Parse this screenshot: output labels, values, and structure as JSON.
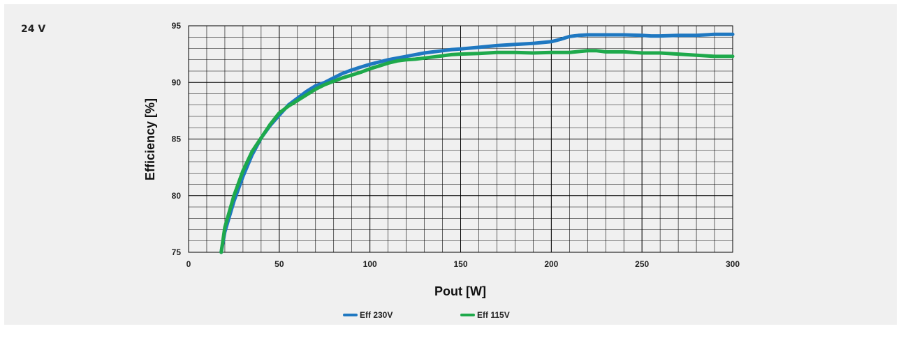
{
  "section_label": "24 V",
  "colors": {
    "series_230": "#1f78c1",
    "series_115": "#1ea94b",
    "grid": "#000000",
    "panel_bg": "#f0f0f0"
  },
  "chart_data": {
    "type": "line",
    "xlabel": "Pout [W]",
    "ylabel": "Efficiency [%]",
    "xlim": [
      0,
      300
    ],
    "ylim": [
      75,
      95
    ],
    "x_major_ticks": [
      0,
      50,
      100,
      150,
      200,
      250,
      300
    ],
    "x_major_tick_labels": [
      "0",
      "50",
      "100",
      "150",
      "200",
      "250",
      "300"
    ],
    "y_major_ticks": [
      75,
      80,
      85,
      90,
      95
    ],
    "y_major_tick_labels": [
      "75",
      "80",
      "85",
      "90",
      "95"
    ],
    "x_minor_step": 10,
    "y_minor_step": 1,
    "grid": true,
    "legend_position": "bottom-center",
    "series": [
      {
        "name": "Eff 230V",
        "color": "#1f78c1",
        "points": [
          [
            18,
            75
          ],
          [
            20,
            76.8
          ],
          [
            25,
            79.5
          ],
          [
            30,
            81.7
          ],
          [
            35,
            83.6
          ],
          [
            40,
            85.1
          ],
          [
            45,
            86.2
          ],
          [
            50,
            87.1
          ],
          [
            55,
            88
          ],
          [
            60,
            88.6
          ],
          [
            65,
            89.2
          ],
          [
            70,
            89.7
          ],
          [
            75,
            90
          ],
          [
            80,
            90.4
          ],
          [
            85,
            90.8
          ],
          [
            90,
            91.1
          ],
          [
            95,
            91.35
          ],
          [
            100,
            91.6
          ],
          [
            105,
            91.8
          ],
          [
            110,
            92
          ],
          [
            115,
            92.15
          ],
          [
            120,
            92.3
          ],
          [
            125,
            92.45
          ],
          [
            130,
            92.6
          ],
          [
            135,
            92.7
          ],
          [
            140,
            92.8
          ],
          [
            145,
            92.9
          ],
          [
            150,
            92.95
          ],
          [
            160,
            93.1
          ],
          [
            170,
            93.25
          ],
          [
            180,
            93.35
          ],
          [
            190,
            93.45
          ],
          [
            200,
            93.6
          ],
          [
            205,
            93.8
          ],
          [
            210,
            94.05
          ],
          [
            215,
            94.15
          ],
          [
            220,
            94.2
          ],
          [
            230,
            94.2
          ],
          [
            240,
            94.2
          ],
          [
            250,
            94.15
          ],
          [
            255,
            94.1
          ],
          [
            260,
            94.1
          ],
          [
            270,
            94.15
          ],
          [
            280,
            94.15
          ],
          [
            290,
            94.25
          ],
          [
            300,
            94.25
          ]
        ]
      },
      {
        "name": "Eff 115V",
        "color": "#1ea94b",
        "points": [
          [
            18,
            75
          ],
          [
            20,
            77.2
          ],
          [
            25,
            80
          ],
          [
            30,
            82.2
          ],
          [
            35,
            83.9
          ],
          [
            40,
            85.1
          ],
          [
            45,
            86.3
          ],
          [
            50,
            87.3
          ],
          [
            55,
            87.9
          ],
          [
            60,
            88.4
          ],
          [
            65,
            88.9
          ],
          [
            70,
            89.4
          ],
          [
            75,
            89.8
          ],
          [
            80,
            90.1
          ],
          [
            85,
            90.4
          ],
          [
            90,
            90.65
          ],
          [
            95,
            90.9
          ],
          [
            100,
            91.2
          ],
          [
            105,
            91.45
          ],
          [
            110,
            91.7
          ],
          [
            115,
            91.9
          ],
          [
            120,
            92
          ],
          [
            125,
            92.05
          ],
          [
            130,
            92.15
          ],
          [
            135,
            92.25
          ],
          [
            140,
            92.35
          ],
          [
            145,
            92.45
          ],
          [
            150,
            92.5
          ],
          [
            160,
            92.55
          ],
          [
            170,
            92.65
          ],
          [
            180,
            92.65
          ],
          [
            190,
            92.6
          ],
          [
            200,
            92.65
          ],
          [
            210,
            92.65
          ],
          [
            220,
            92.8
          ],
          [
            225,
            92.8
          ],
          [
            230,
            92.7
          ],
          [
            240,
            92.7
          ],
          [
            250,
            92.6
          ],
          [
            260,
            92.6
          ],
          [
            270,
            92.5
          ],
          [
            280,
            92.4
          ],
          [
            290,
            92.3
          ],
          [
            300,
            92.3
          ]
        ]
      }
    ]
  }
}
